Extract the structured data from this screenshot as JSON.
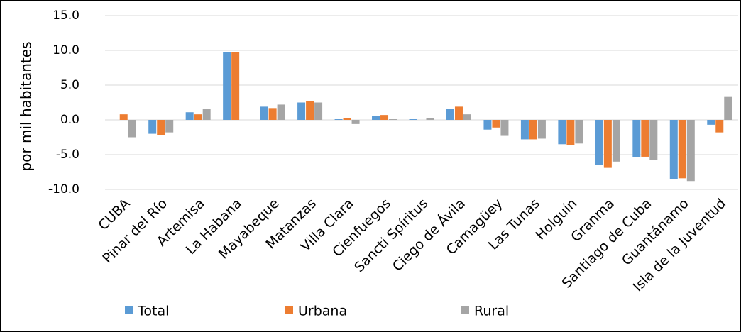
{
  "chart_data": {
    "type": "bar",
    "y_label": "por mil habitantes",
    "categories": [
      "CUBA",
      "Pinar del Río",
      "Artemisa",
      "La Habana",
      "Mayabeque",
      "Matanzas",
      "Villa Clara",
      "Cienfuegos",
      "Sancti Spíritus",
      "Ciego de Ávila",
      "Camagüey",
      "Las Tunas",
      "Holguín",
      "Granma",
      "Santiago de Cuba",
      "Guantánamo",
      "Isla de la Juventud"
    ],
    "series": [
      {
        "name": "Total",
        "color": "#5b9bd5",
        "values": [
          0,
          -2.0,
          1.1,
          9.7,
          1.9,
          2.5,
          0.1,
          0.6,
          0.1,
          1.6,
          -1.4,
          -2.8,
          -3.5,
          -6.5,
          -5.4,
          -8.5,
          -0.7
        ]
      },
      {
        "name": "Urbana",
        "color": "#ed7d31",
        "values": [
          0.8,
          -2.2,
          0.8,
          9.7,
          1.7,
          2.7,
          0.3,
          0.7,
          0,
          1.9,
          -1.1,
          -2.8,
          -3.6,
          -6.9,
          -5.3,
          -8.4,
          -1.8
        ]
      },
      {
        "name": "Rural",
        "color": "#a5a5a5",
        "values": [
          -2.5,
          -1.8,
          1.6,
          0,
          2.2,
          2.5,
          -0.6,
          0.1,
          0.3,
          0.8,
          -2.3,
          -2.7,
          -3.4,
          -6.0,
          -5.8,
          -8.8,
          3.3
        ]
      }
    ],
    "ylim": [
      -10,
      15
    ],
    "yticks": [
      {
        "value": -10,
        "label": "-10.0"
      },
      {
        "value": -5,
        "label": "-5.0"
      },
      {
        "value": 0,
        "label": "0.0"
      },
      {
        "value": 5,
        "label": "5.0"
      },
      {
        "value": 10,
        "label": "10.0"
      },
      {
        "value": 15,
        "label": "15.0"
      }
    ],
    "grid": true,
    "legend": "bottom"
  }
}
